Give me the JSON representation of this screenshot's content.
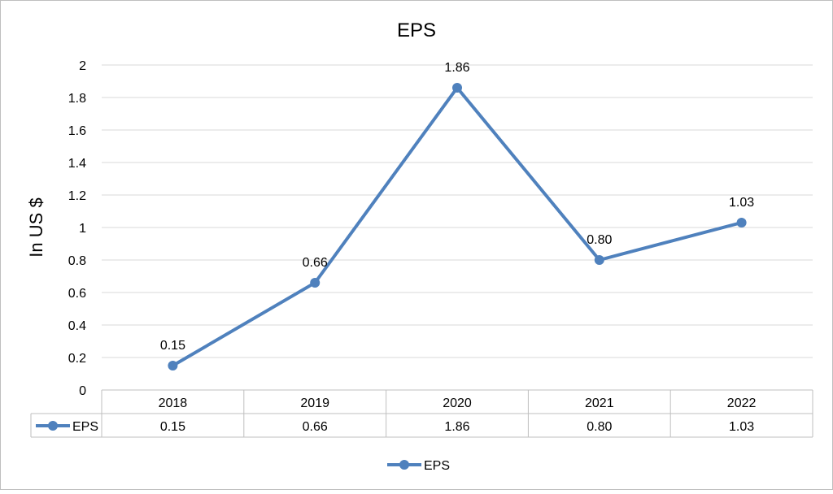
{
  "chart_data": {
    "type": "line",
    "title": "EPS",
    "ylabel": "In US $",
    "xlabel": "",
    "categories": [
      "2018",
      "2019",
      "2020",
      "2021",
      "2022"
    ],
    "series": [
      {
        "name": "EPS",
        "values": [
          0.15,
          0.66,
          1.86,
          0.8,
          1.03
        ],
        "labels": [
          "0.15",
          "0.66",
          "1.86",
          "0.80",
          "1.03"
        ]
      }
    ],
    "ylim": [
      0,
      2
    ],
    "yticks": [
      0,
      0.2,
      0.4,
      0.6,
      0.8,
      1,
      1.2,
      1.4,
      1.6,
      1.8,
      2
    ],
    "ytick_labels": [
      "0",
      "0.2",
      "0.4",
      "0.6",
      "0.8",
      "1",
      "1.2",
      "1.4",
      "1.6",
      "1.8",
      "2"
    ],
    "grid": true,
    "data_table": true,
    "legend_position": "bottom",
    "colors": {
      "series": "#4F81BD",
      "grid": "#D9D9D9",
      "border": "#BFBFBF"
    }
  }
}
